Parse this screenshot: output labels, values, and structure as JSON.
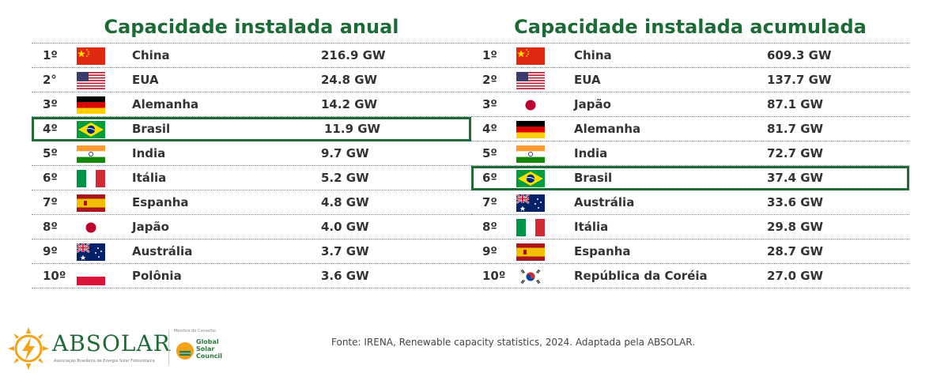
{
  "annual": {
    "title": "Capacidade instalada anual",
    "rows": [
      {
        "rank": "1º",
        "flag": "flag-china",
        "country": "China",
        "value": "216.9 GW",
        "highlight": false
      },
      {
        "rank": "2°",
        "flag": "flag-usa",
        "country": "EUA",
        "value": "24.8 GW",
        "highlight": false
      },
      {
        "rank": "3º",
        "flag": "flag-germany",
        "country": "Alemanha",
        "value": "14.2 GW",
        "highlight": false
      },
      {
        "rank": "4º",
        "flag": "flag-brazil",
        "country": "Brasil",
        "value": "11.9 GW",
        "highlight": true
      },
      {
        "rank": "5º",
        "flag": "flag-india",
        "country": "India",
        "value": "9.7 GW",
        "highlight": false
      },
      {
        "rank": "6º",
        "flag": "flag-italy",
        "country": "Itália",
        "value": "5.2 GW",
        "highlight": false
      },
      {
        "rank": "7º",
        "flag": "flag-spain",
        "country": "Espanha",
        "value": "4.8 GW",
        "highlight": false
      },
      {
        "rank": "8º",
        "flag": "flag-japan",
        "country": "Japão",
        "value": "4.0 GW",
        "highlight": false
      },
      {
        "rank": "9º",
        "flag": "flag-australia",
        "country": "Austrália",
        "value": "3.7 GW",
        "highlight": false
      },
      {
        "rank": "10º",
        "flag": "flag-poland",
        "country": "Polônia",
        "value": "3.6 GW",
        "highlight": false
      }
    ]
  },
  "cumulative": {
    "title": "Capacidade instalada acumulada",
    "rows": [
      {
        "rank": "1º",
        "flag": "flag-china",
        "country": "China",
        "value": "609.3 GW",
        "highlight": false
      },
      {
        "rank": "2º",
        "flag": "flag-usa",
        "country": "EUA",
        "value": "137.7 GW",
        "highlight": false
      },
      {
        "rank": "3º",
        "flag": "flag-japan",
        "country": "Japão",
        "value": "87.1 GW",
        "highlight": false
      },
      {
        "rank": "4º",
        "flag": "flag-germany",
        "country": "Alemanha",
        "value": "81.7 GW",
        "highlight": false
      },
      {
        "rank": "5º",
        "flag": "flag-india",
        "country": "India",
        "value": "72.7 GW",
        "highlight": false
      },
      {
        "rank": "6º",
        "flag": "flag-brazil",
        "country": "Brasil",
        "value": "37.4 GW",
        "highlight": true
      },
      {
        "rank": "7º",
        "flag": "flag-australia",
        "country": "Austrália",
        "value": "33.6 GW",
        "highlight": false
      },
      {
        "rank": "8º",
        "flag": "flag-italy",
        "country": "Itália",
        "value": "29.8 GW",
        "highlight": false
      },
      {
        "rank": "9º",
        "flag": "flag-spain",
        "country": "Espanha",
        "value": "28.7 GW",
        "highlight": false
      },
      {
        "rank": "10º",
        "flag": "flag-south-korea",
        "country": "República da Coréia",
        "value": "27.0 GW",
        "highlight": false
      }
    ]
  },
  "footer": {
    "logo_text": "ABSOLAR",
    "logo_subtitle": "Associação Brasileira de Energia Solar Fotovoltaica",
    "member_label": "Membro do Conselho",
    "partner_name": [
      "Global",
      "Solar",
      "Council"
    ],
    "source": "Fonte: IRENA, Renewable capacity statistics, 2024. Adaptada pela ABSOLAR."
  },
  "colors": {
    "title_green": "#1d6a36",
    "highlight_border": "#1f6b38",
    "row_divider": "#3aa4d8",
    "logo_orange": "#f2a21b"
  }
}
